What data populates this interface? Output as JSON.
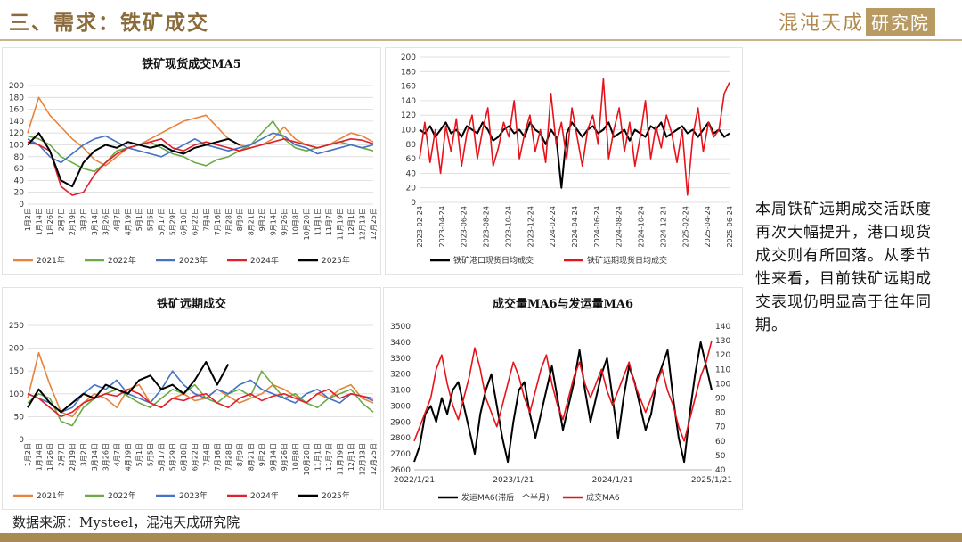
{
  "header": {
    "title": "三、需求：铁矿成交",
    "brand_a": "混沌天成",
    "brand_b": "研究院"
  },
  "note": "本周铁矿远期成交活跃度再次大幅提升，港口现货成交则有所回落。从季节性来看，目前铁矿远期成交表现仍明显高于往年同期。",
  "source": "数据来源：Mysteel，混沌天成研究院",
  "colors": {
    "c2021": "#e8833a",
    "c2022": "#6aab46",
    "c2023": "#4472c4",
    "c2024": "#e0202a",
    "c2025": "#000000",
    "red": "#e8121b",
    "black": "#000000"
  },
  "chart_data": [
    {
      "type": "line",
      "title": "铁矿现货成交MA5",
      "ylim": [
        0,
        200
      ],
      "yticks": [
        0,
        20,
        40,
        60,
        80,
        100,
        120,
        140,
        160,
        180,
        200
      ],
      "xticks": [
        "1月2日",
        "1月14日",
        "1月26日",
        "2月7日",
        "2月19日",
        "3月2日",
        "3月14日",
        "3月26日",
        "4月7日",
        "4月19日",
        "5月1日",
        "5月5日",
        "5月17日",
        "5月29日",
        "6月10日",
        "6月22日",
        "7月4日",
        "7月16日",
        "7月28日",
        "8月9日",
        "8月21日",
        "9月2日",
        "9月14日",
        "9月26日",
        "10月8日",
        "10月20日",
        "11月1日",
        "11月7日",
        "11月19日",
        "12月1日",
        "12月13日",
        "12月25日"
      ],
      "legend": [
        "2021年",
        "2022年",
        "2023年",
        "2024年",
        "2025年"
      ],
      "grid": true,
      "series": [
        {
          "name": "2021年",
          "color": "#e8833a",
          "values": [
            120,
            180,
            150,
            130,
            110,
            95,
            75,
            65,
            80,
            95,
            100,
            110,
            120,
            130,
            140,
            145,
            150,
            130,
            110,
            100,
            95,
            100,
            110,
            130,
            110,
            100,
            95,
            100,
            110,
            120,
            115,
            105
          ]
        },
        {
          "name": "2022年",
          "color": "#6aab46",
          "values": [
            115,
            110,
            100,
            80,
            70,
            60,
            55,
            70,
            90,
            95,
            100,
            105,
            95,
            85,
            80,
            70,
            65,
            75,
            80,
            90,
            100,
            120,
            140,
            110,
            95,
            90,
            95,
            100,
            105,
            100,
            95,
            90
          ]
        },
        {
          "name": "2023年",
          "color": "#4472c4",
          "values": [
            110,
            100,
            80,
            70,
            85,
            100,
            110,
            115,
            105,
            95,
            90,
            85,
            80,
            90,
            100,
            110,
            100,
            95,
            90,
            95,
            100,
            110,
            120,
            115,
            100,
            95,
            85,
            90,
            95,
            100,
            95,
            100
          ]
        },
        {
          "name": "2024年",
          "color": "#e0202a",
          "values": [
            105,
            100,
            90,
            30,
            15,
            20,
            50,
            70,
            85,
            95,
            100,
            105,
            110,
            95,
            90,
            100,
            105,
            100,
            95,
            90,
            95,
            100,
            105,
            110,
            105,
            100,
            95,
            100,
            105,
            110,
            108,
            102
          ]
        },
        {
          "name": "2025年",
          "color": "#000000",
          "values": [
            100,
            120,
            90,
            40,
            30,
            70,
            90,
            100,
            95,
            105,
            100,
            95,
            100,
            90,
            85,
            95,
            100,
            105,
            110,
            100,
            null,
            null,
            null,
            null,
            null,
            null,
            null,
            null,
            null,
            null,
            null,
            null
          ]
        }
      ]
    },
    {
      "type": "line",
      "title": "",
      "ylim": [
        0,
        200
      ],
      "yticks": [
        0,
        20,
        40,
        60,
        80,
        100,
        120,
        140,
        160,
        180,
        200
      ],
      "xticks": [
        "2023-02-24",
        "2023-04-24",
        "2023-06-24",
        "2023-08-24",
        "2023-10-24",
        "2023-12-24",
        "2024-02-24",
        "2024-04-24",
        "2024-06-24",
        "2024-08-24",
        "2024-10-24",
        "2024-12-24",
        "2025-02-24",
        "2025-04-24",
        "2025-06-24"
      ],
      "legend": [
        "铁矿港口现货日均成交",
        "铁矿远期现货日均成交"
      ],
      "grid": true,
      "series": [
        {
          "name": "铁矿港口现货日均成交",
          "color": "#000000",
          "values": [
            100,
            95,
            105,
            90,
            100,
            110,
            95,
            100,
            90,
            105,
            100,
            95,
            110,
            100,
            85,
            90,
            100,
            105,
            95,
            100,
            90,
            110,
            100,
            95,
            80,
            100,
            90,
            20,
            95,
            110,
            100,
            90,
            100,
            105,
            95,
            100,
            110,
            90,
            95,
            100,
            85,
            100,
            95,
            90,
            105,
            100,
            110,
            90,
            95,
            100,
            105,
            95,
            100,
            90,
            100,
            110,
            95,
            100,
            90,
            95
          ]
        },
        {
          "name": "铁矿远期现货日均成交",
          "color": "#e8121b",
          "values": [
            60,
            110,
            55,
            100,
            40,
            105,
            70,
            115,
            50,
            95,
            120,
            60,
            100,
            130,
            50,
            75,
            110,
            90,
            140,
            60,
            95,
            120,
            70,
            100,
            55,
            150,
            80,
            110,
            60,
            130,
            90,
            50,
            100,
            120,
            80,
            170,
            60,
            100,
            130,
            70,
            110,
            50,
            90,
            140,
            60,
            105,
            75,
            120,
            95,
            55,
            100,
            10,
            90,
            130,
            70,
            110,
            90,
            100,
            150,
            165
          ]
        }
      ]
    },
    {
      "type": "line",
      "title": "铁矿远期成交",
      "ylim": [
        0,
        250
      ],
      "yticks": [
        0,
        50,
        100,
        150,
        200,
        250
      ],
      "xticks": [
        "1月2日",
        "1月14日",
        "1月26日",
        "2月7日",
        "2月19日",
        "3月2日",
        "3月14日",
        "3月26日",
        "4月7日",
        "4月19日",
        "5月1日",
        "5月5日",
        "5月17日",
        "5月29日",
        "6月10日",
        "6月22日",
        "7月4日",
        "7月16日",
        "7月28日",
        "8月9日",
        "8月21日",
        "9月2日",
        "9月14日",
        "9月26日",
        "10月8日",
        "10月20日",
        "11月1日",
        "11月7日",
        "11月19日",
        "12月1日",
        "12月13日",
        "12月25日"
      ],
      "legend": [
        "2021年",
        "2022年",
        "2023年",
        "2024年",
        "2025年"
      ],
      "grid": true,
      "series": [
        {
          "name": "2021年",
          "color": "#e8833a",
          "values": [
            90,
            190,
            120,
            60,
            50,
            80,
            100,
            90,
            70,
            110,
            120,
            80,
            70,
            90,
            100,
            85,
            90,
            110,
            95,
            80,
            90,
            100,
            120,
            110,
            95,
            80,
            100,
            90,
            110,
            120,
            90,
            80
          ]
        },
        {
          "name": "2022年",
          "color": "#6aab46",
          "values": [
            80,
            100,
            90,
            40,
            30,
            70,
            90,
            100,
            110,
            95,
            80,
            70,
            90,
            110,
            100,
            120,
            90,
            80,
            100,
            110,
            95,
            150,
            120,
            90,
            100,
            80,
            70,
            90,
            100,
            110,
            80,
            60
          ]
        },
        {
          "name": "2023年",
          "color": "#4472c4",
          "values": [
            100,
            90,
            80,
            60,
            70,
            100,
            120,
            110,
            130,
            100,
            90,
            80,
            110,
            150,
            120,
            100,
            90,
            110,
            100,
            120,
            130,
            110,
            100,
            90,
            80,
            100,
            110,
            90,
            80,
            100,
            95,
            85
          ]
        },
        {
          "name": "2024年",
          "color": "#e0202a",
          "values": [
            100,
            90,
            70,
            50,
            60,
            80,
            90,
            100,
            95,
            110,
            100,
            80,
            70,
            90,
            85,
            95,
            100,
            80,
            70,
            90,
            100,
            85,
            95,
            100,
            90,
            80,
            100,
            110,
            90,
            100,
            95,
            90
          ]
        },
        {
          "name": "2025年",
          "color": "#000000",
          "values": [
            70,
            110,
            80,
            60,
            80,
            100,
            90,
            120,
            110,
            100,
            130,
            140,
            110,
            120,
            100,
            130,
            170,
            120,
            165,
            null,
            null,
            null,
            null,
            null,
            null,
            null,
            null,
            null,
            null,
            null,
            null,
            null
          ]
        }
      ]
    },
    {
      "type": "line",
      "title": "成交量MA6与发运量MA6",
      "ylim": [
        2600,
        3500
      ],
      "yticks": [
        2600,
        2700,
        2800,
        2900,
        3000,
        3100,
        3200,
        3300,
        3400,
        3500
      ],
      "y2lim": [
        40,
        140
      ],
      "y2ticks": [
        40,
        50,
        60,
        70,
        80,
        90,
        100,
        110,
        120,
        130,
        140
      ],
      "xticks": [
        "2022/1/21",
        "2023/1/21",
        "2024/1/21",
        "2025/1/21"
      ],
      "legend": [
        "发运MA6(滞后一个半月)",
        "成交MA6"
      ],
      "grid": false,
      "series": [
        {
          "name": "发运MA6(滞后一个半月)",
          "color": "#000000",
          "axis": "left",
          "values": [
            2650,
            2750,
            2950,
            3000,
            2900,
            3050,
            2950,
            3100,
            3150,
            3000,
            2850,
            2700,
            2950,
            3100,
            3200,
            3000,
            2800,
            2650,
            2900,
            3100,
            3150,
            2950,
            2800,
            2950,
            3100,
            3250,
            3050,
            2850,
            3000,
            3150,
            3350,
            3100,
            2900,
            3050,
            3200,
            3300,
            3050,
            2800,
            3050,
            3250,
            3150,
            3000,
            2850,
            2950,
            3150,
            3250,
            3350,
            3050,
            2800,
            2650,
            2950,
            3200,
            3400,
            3250,
            3100
          ]
        },
        {
          "name": "成交MA6",
          "color": "#e8121b",
          "axis": "right",
          "values": [
            60,
            70,
            80,
            90,
            110,
            120,
            100,
            85,
            75,
            90,
            105,
            125,
            110,
            90,
            80,
            70,
            85,
            100,
            115,
            105,
            90,
            80,
            95,
            110,
            120,
            100,
            85,
            75,
            90,
            105,
            115,
            100,
            90,
            100,
            110,
            95,
            85,
            95,
            105,
            115,
            100,
            90,
            80,
            90,
            100,
            110,
            95,
            85,
            70,
            60,
            75,
            90,
            105,
            115,
            130
          ]
        }
      ]
    }
  ]
}
